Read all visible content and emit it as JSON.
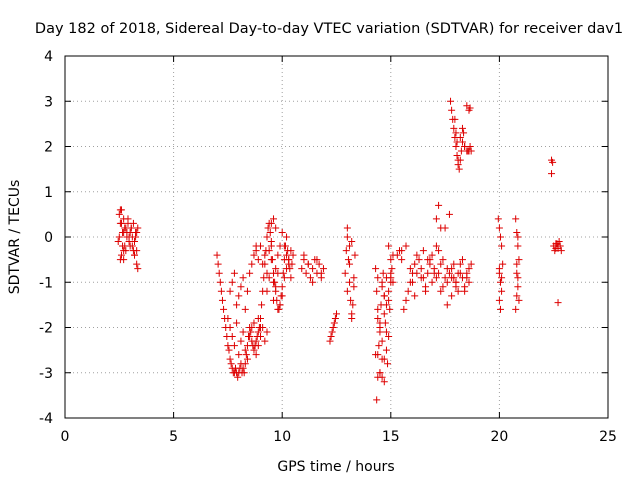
{
  "chart_data": {
    "type": "scatter",
    "title": "Day 182 of 2018, Sidereal Day-to-day VTEC variation (SDTVAR) for receiver dav1",
    "xlabel": "GPS time / hours",
    "ylabel": "SDTVAR / TECUs",
    "xlim": [
      0,
      25
    ],
    "ylim": [
      -4,
      4
    ],
    "xticks": [
      0,
      5,
      10,
      15,
      20,
      25
    ],
    "yticks": [
      -4,
      -3,
      -2,
      -1,
      0,
      1,
      2,
      3,
      4
    ],
    "grid": true,
    "marker": "plus",
    "color": "#dd0000",
    "series": [
      {
        "name": "SDTVAR",
        "x": [
          2.45,
          2.5,
          2.55,
          2.6,
          2.65,
          2.7,
          2.75,
          2.8,
          2.85,
          2.9,
          2.95,
          3.0,
          3.05,
          3.1,
          3.15,
          3.2,
          3.25,
          3.3,
          3.35,
          2.5,
          2.6,
          2.7,
          2.8,
          2.9,
          3.0,
          3.1,
          3.2,
          3.3,
          2.55,
          2.65,
          2.75,
          2.85,
          2.95,
          3.05,
          3.15,
          3.25,
          2.6,
          2.7,
          3.3,
          3.35,
          2.55,
          2.7,
          3.2,
          7.0,
          7.05,
          7.1,
          7.15,
          7.2,
          7.25,
          7.3,
          7.35,
          7.4,
          7.45,
          7.5,
          7.55,
          7.6,
          7.65,
          7.7,
          7.75,
          7.8,
          7.85,
          7.9,
          7.95,
          8.0,
          8.05,
          8.1,
          8.15,
          8.2,
          8.25,
          8.3,
          8.35,
          8.4,
          8.45,
          8.5,
          8.55,
          8.6,
          8.65,
          8.7,
          8.75,
          8.8,
          8.85,
          8.9,
          8.95,
          9.0,
          9.05,
          9.1,
          9.15,
          9.2,
          9.25,
          9.3,
          9.35,
          9.4,
          9.45,
          9.5,
          9.55,
          9.6,
          9.65,
          9.7,
          9.75,
          9.8,
          9.85,
          9.9,
          9.95,
          10.0,
          10.05,
          10.1,
          10.15,
          10.2,
          10.25,
          10.3,
          10.35,
          10.4,
          10.45,
          10.5,
          7.6,
          7.7,
          7.8,
          7.9,
          8.0,
          8.1,
          8.2,
          8.3,
          8.4,
          8.5,
          8.6,
          8.7,
          8.8,
          8.9,
          9.0,
          7.5,
          7.6,
          7.7,
          7.8,
          7.9,
          8.0,
          8.1,
          8.2,
          8.3,
          8.4,
          8.5,
          8.6,
          8.7,
          8.8,
          8.9,
          9.0,
          9.1,
          9.2,
          9.3,
          8.8,
          8.9,
          9.0,
          9.1,
          9.2,
          9.3,
          9.4,
          9.5,
          9.6,
          9.7,
          9.8,
          9.9,
          10.0,
          10.1,
          10.2,
          10.3,
          9.3,
          9.4,
          9.5,
          9.6,
          9.7,
          9.8,
          9.9,
          10.0,
          10.1,
          10.2,
          10.3,
          10.4,
          9.5,
          9.6,
          9.7,
          10.9,
          11.0,
          11.1,
          11.2,
          11.3,
          11.4,
          11.5,
          11.6,
          11.7,
          11.8,
          11.9,
          11.0,
          11.2,
          11.4,
          11.6,
          11.8,
          12.2,
          12.25,
          12.3,
          12.35,
          12.4,
          12.45,
          12.5,
          12.9,
          12.95,
          13.0,
          13.05,
          13.1,
          13.15,
          13.2,
          13.25,
          13.3,
          13.35,
          13.0,
          13.1,
          13.2,
          13.3,
          13.0,
          13.1,
          13.2,
          14.3,
          14.35,
          14.4,
          14.45,
          14.5,
          14.55,
          14.6,
          14.65,
          14.7,
          14.75,
          14.8,
          14.85,
          14.9,
          14.95,
          15.0,
          15.05,
          15.1,
          14.4,
          14.5,
          14.6,
          14.7,
          14.8,
          14.9,
          15.0,
          14.3,
          14.4,
          14.5,
          14.6,
          14.7,
          14.8,
          14.9,
          15.0,
          15.1,
          14.4,
          14.5,
          14.6,
          14.7,
          14.8,
          14.5,
          14.6,
          14.7,
          14.4,
          14.35,
          14.9,
          15.0,
          15.3,
          15.4,
          15.5,
          15.6,
          15.7,
          15.8,
          15.9,
          16.0,
          16.1,
          16.2,
          16.3,
          16.4,
          16.5,
          16.6,
          16.7,
          16.8,
          16.9,
          17.0,
          17.1,
          17.2,
          17.3,
          17.4,
          17.5,
          17.6,
          17.7,
          17.8,
          17.9,
          18.0,
          18.1,
          18.2,
          18.3,
          18.4,
          18.5,
          18.6,
          18.7,
          15.9,
          16.0,
          16.1,
          16.2,
          16.4,
          16.6,
          16.8,
          17.0,
          17.2,
          17.4,
          17.6,
          17.8,
          18.0,
          18.2,
          18.4,
          18.6,
          16.5,
          16.7,
          16.9,
          17.1,
          17.3,
          17.5,
          17.7,
          17.9,
          18.1,
          18.3,
          18.5,
          17.1,
          17.2,
          17.3,
          15.5,
          15.7,
          17.6,
          17.8,
          18.0,
          17.75,
          17.8,
          17.85,
          17.9,
          17.95,
          18.0,
          18.05,
          18.1,
          18.15,
          18.2,
          18.25,
          18.3,
          18.35,
          18.4,
          18.5,
          18.55,
          18.6,
          18.65,
          18.7,
          17.95,
          18.0,
          18.05,
          18.1,
          18.2,
          18.3,
          18.4,
          18.5,
          18.6,
          18.65,
          19.95,
          20.0,
          20.05,
          20.1,
          20.15,
          20.0,
          20.05,
          20.1,
          20.0,
          20.05,
          20.1,
          20.0,
          20.75,
          20.8,
          20.85,
          20.9,
          20.8,
          20.85,
          20.9,
          20.75,
          20.8,
          20.85,
          20.8,
          20.85,
          22.4,
          22.45,
          22.4,
          22.5,
          22.55,
          22.6,
          22.65,
          22.7,
          22.75,
          22.8,
          22.85,
          22.6,
          22.7,
          22.7
        ],
        "y": [
          -0.1,
          0.5,
          0.6,
          0.3,
          -0.2,
          0.1,
          0.2,
          -0.3,
          0.0,
          0.3,
          -0.1,
          0.1,
          0.2,
          -0.2,
          0.3,
          -0.1,
          0.0,
          0.1,
          0.2,
          0.0,
          -0.4,
          -0.3,
          0.2,
          0.4,
          -0.2,
          0.0,
          -0.4,
          -0.3,
          0.3,
          0.1,
          -0.2,
          0.1,
          0.0,
          0.2,
          -0.3,
          0.1,
          0.6,
          0.4,
          -0.6,
          -0.7,
          -0.5,
          -0.5,
          -0.4,
          -0.4,
          -0.6,
          -0.8,
          -1.0,
          -1.2,
          -1.4,
          -1.6,
          -1.8,
          -2.0,
          -2.2,
          -2.4,
          -2.5,
          -2.7,
          -2.8,
          -2.9,
          -3.0,
          -3.0,
          -2.9,
          -3.0,
          -3.1,
          -3.0,
          -2.9,
          -2.8,
          -3.0,
          -2.9,
          -3.0,
          -2.8,
          -2.6,
          -2.4,
          -2.2,
          -2.0,
          -2.1,
          -2.3,
          -2.4,
          -2.5,
          -2.4,
          -2.3,
          -2.2,
          -2.1,
          -2.0,
          -1.8,
          -1.5,
          -1.2,
          -0.9,
          -0.6,
          -0.3,
          0.0,
          0.2,
          0.3,
          0.1,
          -0.2,
          -0.5,
          -0.8,
          -1.0,
          -1.2,
          -1.4,
          -1.6,
          -1.6,
          -1.5,
          -1.3,
          -1.1,
          -0.8,
          -0.5,
          -0.2,
          0.0,
          -0.3,
          -0.5,
          -0.7,
          -0.9,
          -0.6,
          -0.4,
          -1.2,
          -1.0,
          -0.8,
          -1.5,
          -1.3,
          -1.1,
          -0.9,
          -1.6,
          -1.2,
          -0.8,
          -0.6,
          -0.4,
          -0.2,
          -1.8,
          -2.0,
          -1.8,
          -2.0,
          -2.2,
          -2.4,
          -1.9,
          -2.6,
          -2.3,
          -2.1,
          -2.5,
          -2.7,
          -2.2,
          -2.0,
          -1.9,
          -2.6,
          -2.4,
          -2.2,
          -2.0,
          -2.3,
          -2.1,
          -0.3,
          -0.5,
          -0.2,
          -0.6,
          -0.4,
          -0.8,
          -0.3,
          -0.1,
          -1.0,
          -0.7,
          -0.4,
          -0.2,
          0.1,
          -0.2,
          -0.4,
          -0.6,
          -1.2,
          -0.9,
          -0.5,
          -1.4,
          -1.1,
          -0.8,
          -1.5,
          -1.3,
          -0.9,
          -0.7,
          -0.5,
          -0.3,
          0.3,
          0.4,
          0.2,
          -0.7,
          -0.5,
          -0.8,
          -0.6,
          -0.9,
          -0.7,
          -0.5,
          -0.8,
          -0.6,
          -0.9,
          -0.7,
          -0.4,
          -0.6,
          -1.0,
          -0.5,
          -0.8,
          -2.3,
          -2.2,
          -2.1,
          -2.0,
          -1.9,
          -1.8,
          -1.7,
          -0.8,
          -0.3,
          0.2,
          -0.5,
          -1.0,
          -1.4,
          -1.8,
          -1.5,
          -0.9,
          -0.4,
          -1.2,
          -0.6,
          -1.7,
          -1.1,
          0.0,
          -0.2,
          -0.1,
          -0.7,
          -1.2,
          -1.8,
          -2.4,
          -2.0,
          -1.5,
          -1.0,
          -0.8,
          -1.3,
          -1.9,
          -2.5,
          -2.8,
          -2.2,
          -1.6,
          -1.0,
          -0.7,
          -0.4,
          -2.6,
          -3.0,
          -3.1,
          -2.7,
          -2.1,
          -1.4,
          -0.9,
          -2.6,
          -1.6,
          -2.1,
          -1.1,
          -1.7,
          -1.5,
          -1.2,
          -0.8,
          -1.0,
          -0.9,
          -1.9,
          -2.3,
          -1.3,
          -0.9,
          -3.0,
          -2.7,
          -3.2,
          -3.1,
          -3.6,
          -0.2,
          -0.5,
          -0.4,
          -0.3,
          -0.5,
          -1.6,
          -1.4,
          -1.2,
          -1.0,
          -0.8,
          -0.6,
          -0.4,
          -0.5,
          -0.7,
          -0.9,
          -1.1,
          -0.8,
          -0.6,
          -0.4,
          -0.7,
          -0.9,
          -0.8,
          -0.6,
          -0.5,
          -0.9,
          -1.0,
          -0.8,
          -0.7,
          -0.9,
          -1.0,
          -1.2,
          -0.8,
          -0.9,
          -1.1,
          -0.8,
          -0.7,
          -0.6,
          -0.7,
          -1.0,
          -1.3,
          -0.8,
          -0.9,
          -1.2,
          -0.5,
          -0.8,
          -0.3,
          -1.1,
          -0.7,
          -0.9,
          -1.0,
          -0.6,
          -1.2,
          -1.0,
          -0.3,
          -0.5,
          -1.0,
          -0.2,
          -1.2,
          0.2,
          0.5,
          -0.6,
          -0.8,
          -0.5,
          -0.9,
          0.4,
          0.7,
          0.2,
          -0.3,
          -0.2,
          -1.5,
          -1.3,
          -1.1,
          3.0,
          2.8,
          2.6,
          2.4,
          2.2,
          2.0,
          1.8,
          1.6,
          1.5,
          1.7,
          1.9,
          2.1,
          2.3,
          2.0,
          1.9,
          1.9,
          1.9,
          2.0,
          1.9,
          2.6,
          2.3,
          2.1,
          1.7,
          2.2,
          2.4,
          2.0,
          2.9,
          2.8,
          2.85,
          0.4,
          0.2,
          0.0,
          -0.2,
          -0.6,
          -0.8,
          -1.0,
          -1.2,
          -1.4,
          -1.6,
          -0.9,
          -0.7,
          0.4,
          0.1,
          -0.2,
          -0.5,
          -0.8,
          -1.1,
          -1.4,
          -1.6,
          -1.3,
          -0.9,
          -0.6,
          0.0,
          1.7,
          1.65,
          1.4,
          -0.2,
          -0.3,
          -0.25,
          -0.15,
          -0.2,
          -0.1,
          -0.2,
          -0.3,
          -0.15,
          -0.25,
          -1.45
        ]
      }
    ]
  }
}
